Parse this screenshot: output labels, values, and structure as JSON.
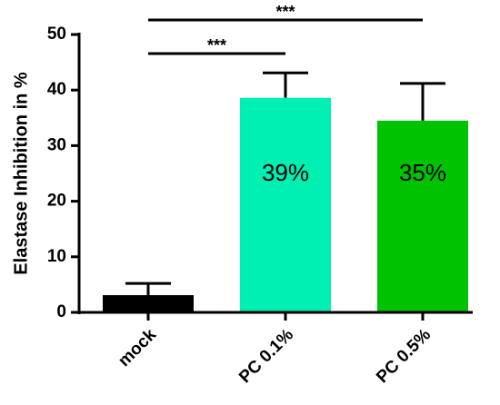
{
  "chart_data": {
    "type": "bar",
    "y_label": "Elastase Inhibition in %",
    "categories": [
      "mock",
      "PC 0.1%",
      "PC 0.5%"
    ],
    "values": [
      3.1,
      38.6,
      34.5
    ],
    "errors": [
      2.1,
      4.5,
      6.7
    ],
    "value_labels": [
      null,
      "39%",
      "35%"
    ],
    "colors": [
      "#000000",
      "#00efb2",
      "#00c200"
    ],
    "ylim": [
      0,
      50
    ],
    "yticks": [
      0,
      10,
      20,
      30,
      40,
      50
    ],
    "annotations": [
      {
        "from": "mock",
        "to": "PC 0.1%",
        "label": "***"
      },
      {
        "from": "mock",
        "to": "PC 0.5%",
        "label": "***"
      }
    ]
  }
}
